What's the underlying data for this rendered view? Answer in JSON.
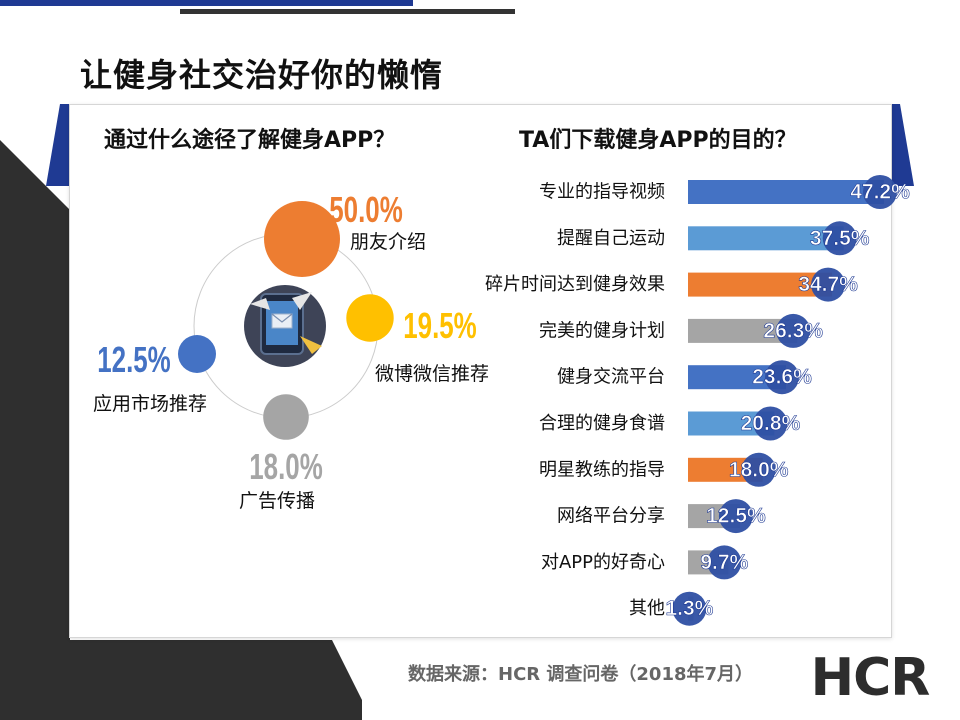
{
  "slide": {
    "title": "让健身社交治好你的懒惰",
    "source": "数据来源：HCR 调查问卷（2018年7月）",
    "logo_text": "HCR"
  },
  "colors": {
    "navy": "#1f3a93",
    "dark": "#333333",
    "blue": "#4472c4",
    "light_blue": "#5b9bd5",
    "orange": "#ed7d31",
    "gray": "#a5a5a5",
    "gold": "#ffc000"
  },
  "chart_data": [
    {
      "type": "pie",
      "title": "通过什么途径了解健身APP？",
      "center_icon": "tablet-email-icon",
      "slices": [
        {
          "label": "朋友介绍",
          "value": 50.0,
          "value_label": "50.0%",
          "color": "#ed7d31"
        },
        {
          "label": "微博微信推荐",
          "value": 19.5,
          "value_label": "19.5%",
          "color": "#ffc000"
        },
        {
          "label": "广告传播",
          "value": 18.0,
          "value_label": "18.0%",
          "color": "#a5a5a5"
        },
        {
          "label": "应用市场推荐",
          "value": 12.5,
          "value_label": "12.5%",
          "color": "#4472c4"
        }
      ]
    },
    {
      "type": "bar",
      "orientation": "horizontal",
      "title": "TA们下载健身APP的目的？",
      "xlim": [
        0,
        47.2
      ],
      "categories": [
        "专业的指导视频",
        "提醒自己运动",
        "碎片时间达到健身效果",
        "完美的健身计划",
        "健身交流平台",
        "合理的健身食谱",
        "明星教练的指导",
        "网络平台分享",
        "对APP的好奇心",
        "其他"
      ],
      "values": [
        47.2,
        37.5,
        34.7,
        26.3,
        23.6,
        20.8,
        18.0,
        12.5,
        9.7,
        1.3
      ],
      "value_labels": [
        "47.2%",
        "37.5%",
        "34.7%",
        "26.3%",
        "23.6%",
        "20.8%",
        "18.0%",
        "12.5%",
        "9.7%",
        "1.3%"
      ],
      "colors": [
        "#4472c4",
        "#5b9bd5",
        "#ed7d31",
        "#a5a5a5",
        "#4472c4",
        "#5b9bd5",
        "#ed7d31",
        "#a5a5a5",
        "#a5a5a5",
        "#a5a5a5"
      ]
    }
  ]
}
